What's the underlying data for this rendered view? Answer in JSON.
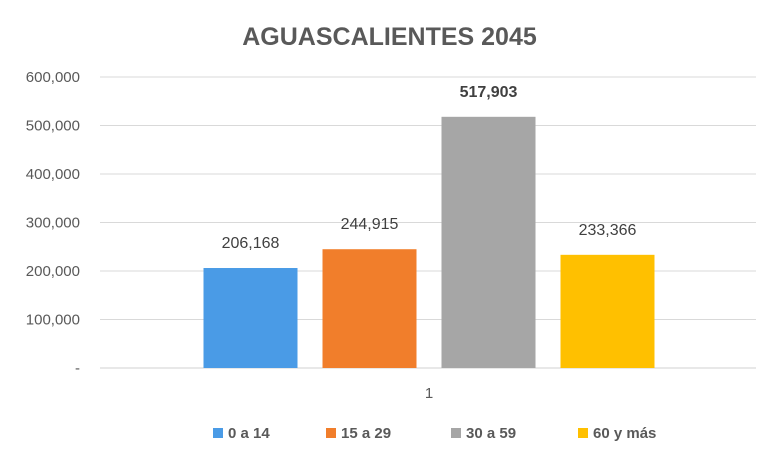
{
  "chart_data": {
    "type": "bar",
    "title": "AGUASCALIENTES 2045",
    "categories": [
      "1"
    ],
    "series": [
      {
        "name": "0 a 14",
        "values": [
          206168
        ],
        "label": "206,168",
        "color": "#4A9BE6"
      },
      {
        "name": "15 a 29",
        "values": [
          244915
        ],
        "label": "244,915",
        "color": "#F17E2B"
      },
      {
        "name": "30 a 59",
        "values": [
          517903
        ],
        "label": "517,903",
        "color": "#A6A6A6"
      },
      {
        "name": "60 y más",
        "values": [
          233366
        ],
        "label": "233,366",
        "color": "#FFC000"
      }
    ],
    "ylim": [
      0,
      600000
    ],
    "yticks": [
      0,
      100000,
      200000,
      300000,
      400000,
      500000,
      600000
    ],
    "ytick_labels": [
      "-",
      "100,000",
      "200,000",
      "300,000",
      "400,000",
      "500,000",
      "600,000"
    ],
    "highlighted_series": "30 a 59",
    "xlabel": "",
    "ylabel": "",
    "grid": true,
    "legend": "bottom"
  }
}
